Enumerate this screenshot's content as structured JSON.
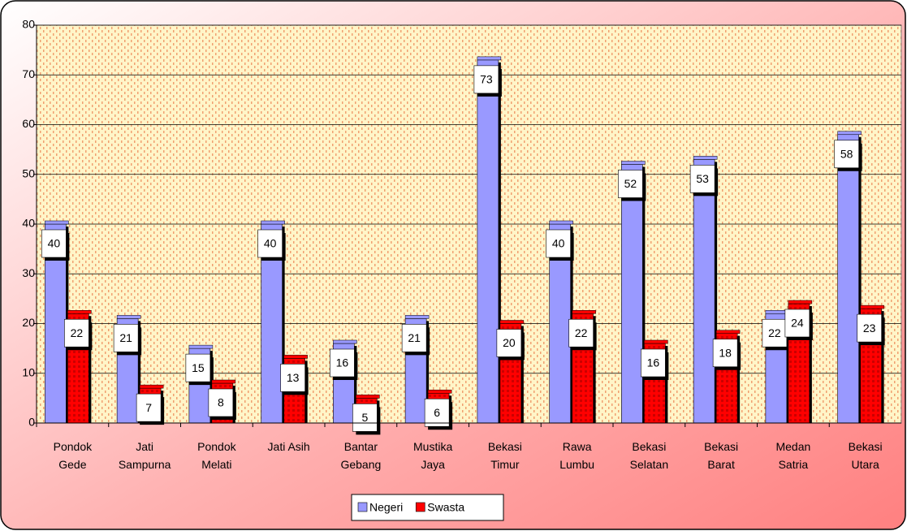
{
  "chart_data": {
    "type": "bar",
    "categories": [
      "Pondok Gede",
      "Jati Sampurna",
      "Pondok Melati",
      "Jati Asih",
      "Bantar Gebang",
      "Mustika Jaya",
      "Bekasi Timur",
      "Rawa Lumbu",
      "Bekasi Selatan",
      "Bekasi Barat",
      "Medan Satria",
      "Bekasi Utara"
    ],
    "series": [
      {
        "name": "Negeri",
        "color": "#9999ff",
        "values": [
          40,
          21,
          15,
          40,
          16,
          21,
          73,
          40,
          52,
          53,
          22,
          58
        ]
      },
      {
        "name": "Swasta",
        "color": "#ff0000",
        "values": [
          22,
          7,
          8,
          13,
          5,
          6,
          20,
          22,
          16,
          18,
          24,
          23
        ]
      }
    ],
    "ylim": [
      0,
      80
    ],
    "yticks": [
      0,
      10,
      20,
      30,
      40,
      50,
      60,
      70,
      80
    ],
    "grid": true,
    "legend": "bottom"
  }
}
